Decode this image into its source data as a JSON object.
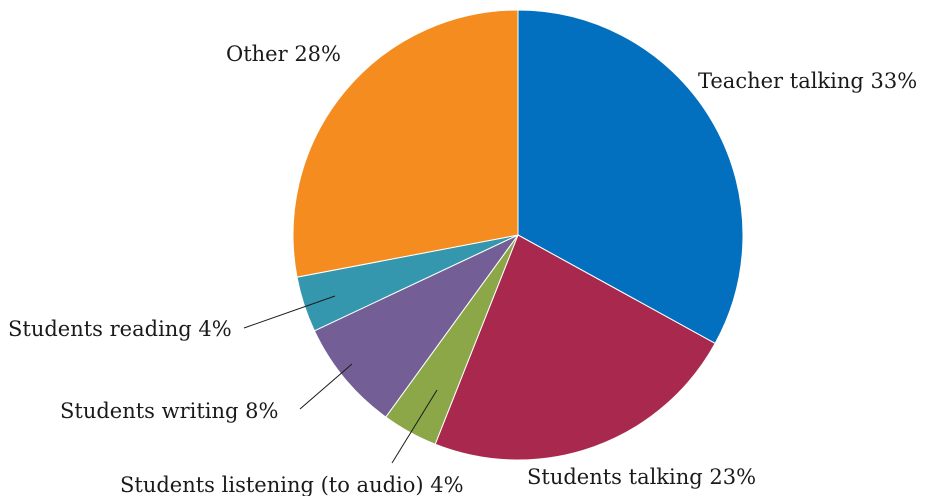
{
  "chart_data": {
    "type": "pie",
    "start_angle_deg": 0,
    "direction": "clockwise",
    "slices": [
      {
        "label": "Teacher talking 33%",
        "name": "Teacher talking",
        "value": 33,
        "color": "#0270BE"
      },
      {
        "label": "Students talking 23%",
        "name": "Students talking",
        "value": 23,
        "color": "#A8294D"
      },
      {
        "label": "Students listening (to audio) 4%",
        "name": "Students listening (to audio)",
        "value": 4,
        "color": "#8BA747"
      },
      {
        "label": "Students writing 8%",
        "name": "Students writing",
        "value": 8,
        "color": "#735F95"
      },
      {
        "label": "Students reading 4%",
        "name": "Students reading",
        "value": 4,
        "color": "#3597AE"
      },
      {
        "label": "Other 28%",
        "name": "Other",
        "value": 28,
        "color": "#F48C20"
      }
    ]
  }
}
